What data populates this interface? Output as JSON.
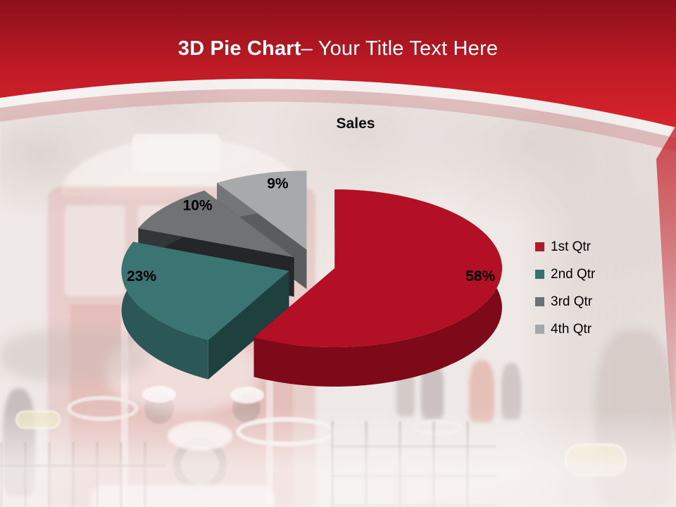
{
  "slide": {
    "title_bold": "3D Pie Chart",
    "title_regular": "– Your Title Text Here",
    "background_alt": "Faded winter photo: snow-covered red tram 223 on a snowy street with trees and pedestrians"
  },
  "chart_data": {
    "type": "pie",
    "style": "3d-exploded",
    "title": "Sales",
    "categories": [
      "1st Qtr",
      "2nd Qtr",
      "3rd Qtr",
      "4th Qtr"
    ],
    "values": [
      58,
      23,
      10,
      9
    ],
    "labels": [
      "58%",
      "23%",
      "10%",
      "9%"
    ],
    "start_angle_deg": 0,
    "direction": "clockwise",
    "legend_position": "right",
    "colors_top": [
      "#B30F25",
      "#3A7473",
      "#6F7374",
      "#A7AAAB"
    ],
    "colors_side": [
      "#7E0A19",
      "#2B5756",
      "#333638",
      "#737677"
    ],
    "colors_dark": [
      "#690713",
      "#1E4140",
      "#242628",
      "#5A5D5E"
    ],
    "legend_colors": [
      "#A81E2A",
      "#347170",
      "#6E7172",
      "#A5A8A9"
    ]
  },
  "theme": {
    "header_red_top": "#8C1019",
    "header_red_mid": "#C01B26",
    "header_red_bottom": "#D7242C",
    "label_color": "#000000",
    "title_color": "#FFFFFF"
  }
}
